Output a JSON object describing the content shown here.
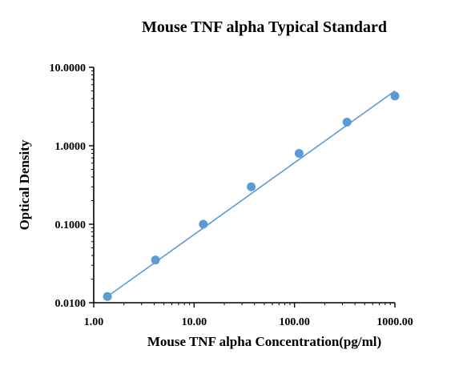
{
  "chart_data": {
    "type": "scatter",
    "title": "Mouse TNF alpha Typical Standard",
    "xlabel": "Mouse TNF alpha Concentration(pg/ml)",
    "ylabel": "Optical Density",
    "x_scale": "log",
    "y_scale": "log",
    "xlim": [
      1,
      1000
    ],
    "ylim": [
      0.01,
      10
    ],
    "x_ticks": [
      1,
      10,
      100,
      1000
    ],
    "x_tick_labels": [
      "1.00",
      "10.00",
      "100.00",
      "1000.00"
    ],
    "y_ticks": [
      0.01,
      0.1,
      1,
      10
    ],
    "y_tick_labels": [
      "0.0100",
      "0.1000",
      "1.0000",
      "10.0000"
    ],
    "grid": false,
    "legend": "none",
    "series": [
      {
        "x": [
          1.37,
          4.12,
          12.35,
          37.04,
          111.11,
          333.33,
          1000
        ],
        "y": [
          0.012,
          0.035,
          0.1,
          0.3,
          0.8,
          2.0,
          4.3
        ],
        "color": "#5b9bd5"
      }
    ],
    "fit_line": {
      "x": [
        1.37,
        1000
      ],
      "y": [
        0.012,
        5.0
      ],
      "color": "#5b9bd5"
    }
  }
}
